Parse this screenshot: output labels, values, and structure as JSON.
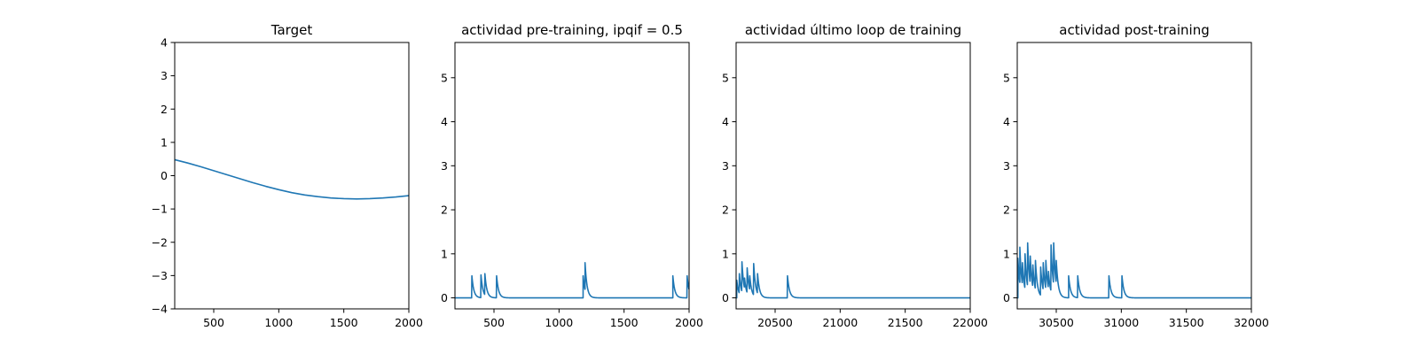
{
  "chart_data": [
    {
      "type": "line",
      "title": "Target",
      "xlim": [
        200,
        2000
      ],
      "ylim": [
        -4,
        4
      ],
      "xticks": [
        500,
        1000,
        1500,
        2000
      ],
      "yticks": [
        -4,
        -3,
        -2,
        -1,
        0,
        1,
        2,
        3,
        4
      ],
      "color": "#1f77b4",
      "series": [
        {
          "x": [
            200,
            300,
            400,
            500,
            600,
            700,
            800,
            900,
            1000,
            1100,
            1200,
            1300,
            1400,
            1500,
            1600,
            1700,
            1800,
            1900,
            2000
          ],
          "y": [
            0.48,
            0.38,
            0.27,
            0.15,
            0.03,
            -0.09,
            -0.21,
            -0.32,
            -0.42,
            -0.51,
            -0.58,
            -0.63,
            -0.67,
            -0.69,
            -0.7,
            -0.69,
            -0.67,
            -0.64,
            -0.6
          ]
        }
      ]
    },
    {
      "type": "line",
      "title": "actividad pre-training, ipqif = 0.5",
      "xlim": [
        200,
        2000
      ],
      "ylim": [
        -0.25,
        5.8
      ],
      "xticks": [
        500,
        1000,
        1500,
        2000
      ],
      "yticks": [
        0,
        1,
        2,
        3,
        4,
        5
      ],
      "color": "#1f77b4",
      "spikes": {
        "baseline": 0,
        "decay": 15,
        "events": [
          [
            330,
            0.5
          ],
          [
            400,
            0.52
          ],
          [
            430,
            0.55
          ],
          [
            520,
            0.5
          ],
          [
            1185,
            0.5
          ],
          [
            1200,
            0.8
          ],
          [
            1875,
            0.5
          ],
          [
            1985,
            0.5
          ]
        ]
      }
    },
    {
      "type": "line",
      "title": "actividad último loop de training",
      "xlim": [
        20200,
        22000
      ],
      "ylim": [
        -0.25,
        5.8
      ],
      "xticks": [
        20500,
        21000,
        21500,
        22000
      ],
      "yticks": [
        0,
        1,
        2,
        3,
        4,
        5
      ],
      "color": "#1f77b4",
      "spikes": {
        "baseline": 0,
        "decay": 15,
        "events": [
          [
            20205,
            0.4
          ],
          [
            20225,
            0.55
          ],
          [
            20245,
            0.82
          ],
          [
            20265,
            0.45
          ],
          [
            20285,
            0.68
          ],
          [
            20305,
            0.5
          ],
          [
            20335,
            0.78
          ],
          [
            20365,
            0.55
          ],
          [
            20595,
            0.5
          ]
        ]
      }
    },
    {
      "type": "line",
      "title": "actividad post-training",
      "xlim": [
        30200,
        32000
      ],
      "ylim": [
        -0.25,
        5.8
      ],
      "xticks": [
        30500,
        31000,
        31500,
        32000
      ],
      "yticks": [
        0,
        1,
        2,
        3,
        4,
        5
      ],
      "color": "#1f77b4",
      "spikes": {
        "baseline": 0,
        "decay": 15,
        "events": [
          [
            30205,
            0.9
          ],
          [
            30220,
            1.15
          ],
          [
            30240,
            0.8
          ],
          [
            30260,
            1.0
          ],
          [
            30280,
            1.25
          ],
          [
            30300,
            0.95
          ],
          [
            30320,
            0.75
          ],
          [
            30340,
            0.85
          ],
          [
            30380,
            0.7
          ],
          [
            30400,
            0.8
          ],
          [
            30420,
            0.85
          ],
          [
            30440,
            0.6
          ],
          [
            30460,
            1.2
          ],
          [
            30480,
            1.25
          ],
          [
            30500,
            0.85
          ],
          [
            30595,
            0.5
          ],
          [
            30665,
            0.5
          ],
          [
            30905,
            0.5
          ],
          [
            31005,
            0.5
          ]
        ]
      }
    }
  ]
}
